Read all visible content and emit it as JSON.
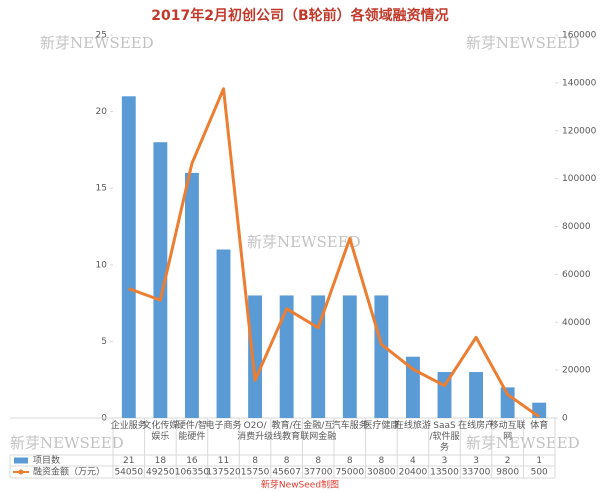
{
  "chart_data": {
    "type": "bar_line",
    "title": "2017年2月初创公司（B轮前）各领域融资情况",
    "watermark": "新芽NEWSEED",
    "footer": "新芽NewSeed制图",
    "categories": [
      "企业服务",
      "文化传媒娱乐",
      "硬件/智能硬件",
      "电子商务",
      "O2O/消费升级",
      "教育/在线教育",
      "金融/互联网金融",
      "汽车服务",
      "医疗健康",
      "在线旅游",
      "SaaS/软件服务",
      "在线房产",
      "移动互联网",
      "体育"
    ],
    "series": [
      {
        "name": "项目数",
        "color": "#5b9bd5",
        "values": [
          21,
          18,
          16,
          11,
          8,
          8,
          8,
          8,
          8,
          4,
          3,
          3,
          2,
          1
        ]
      },
      {
        "name": "融资金额（万元）",
        "color": "#ed7d31",
        "axis": "y2",
        "values": [
          54050,
          49250,
          106350,
          137520,
          15750,
          45607,
          37700,
          75000,
          30800,
          20400,
          13500,
          33700,
          9800,
          500
        ]
      }
    ],
    "ylim": [
      0,
      25
    ],
    "yticks": [
      0,
      5,
      10,
      15,
      20,
      25
    ],
    "y2lim": [
      0,
      160000
    ],
    "y2ticks": [
      0,
      20000,
      40000,
      60000,
      80000,
      100000,
      120000,
      140000,
      160000
    ],
    "grid": false
  }
}
